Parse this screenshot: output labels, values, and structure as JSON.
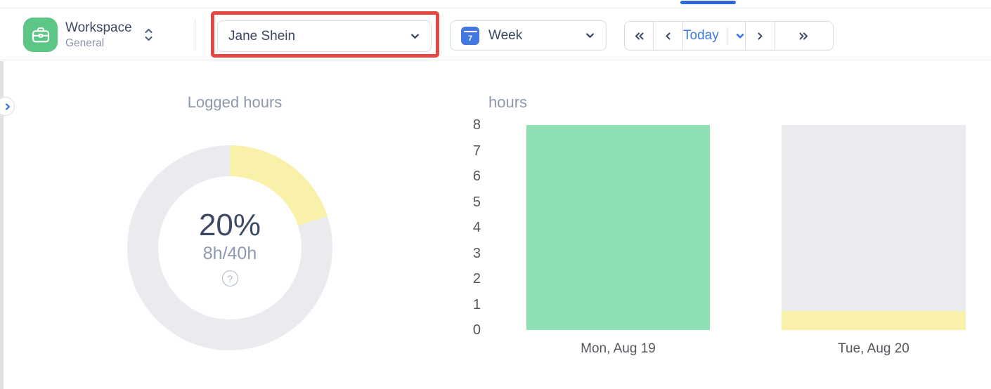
{
  "colors": {
    "accent_blue": "#3b79e3",
    "tab_indicator_blue": "#3168d8",
    "workspace_green": "#5bc685",
    "annotation_red": "#e54742",
    "calendar_icon_blue": "#4478e1",
    "bar_green": "#8ce0b2",
    "bar_yellow": "#faf1ab",
    "bar_gray": "#e9ebee"
  },
  "header": {
    "workspace": {
      "title": "Workspace",
      "subtitle": "General"
    },
    "member_dropdown": {
      "value": "Jane Shein"
    },
    "period_dropdown": {
      "value": "Week",
      "calendar_icon_day": "7"
    },
    "date_nav": {
      "today_label": "Today"
    }
  },
  "icons": {
    "help_glyph": "?"
  },
  "chart_data": [
    {
      "type": "pie",
      "variant": "donut",
      "title": "Logged hours",
      "center_label": "20%",
      "center_sublabel": "8h/40h",
      "logged_hours": 8,
      "capacity_hours": 40,
      "percent_logged": 20,
      "start_angle_deg": 0,
      "direction": "clockwise",
      "segments": [
        {
          "name": "logged",
          "value": 20,
          "color": "#f9f0a9"
        },
        {
          "name": "remaining",
          "value": 80,
          "color": "#e9ebee"
        }
      ]
    },
    {
      "type": "bar",
      "title": "hours",
      "stacked": true,
      "ylim": [
        0,
        8
      ],
      "yticks_top_to_bottom": [
        8,
        7,
        6,
        5,
        4,
        3,
        2,
        1,
        0
      ],
      "bars": [
        {
          "category": "Mon, Aug 19",
          "segments_bottom_to_top": [
            {
              "name": "logged",
              "hours": 8,
              "color": "#8ce0b2"
            }
          ]
        },
        {
          "category": "Tue, Aug 20",
          "segments_bottom_to_top": [
            {
              "name": "logged",
              "hours": 0.75,
              "color": "#faf1ab"
            },
            {
              "name": "remaining-capacity",
              "hours": 7.25,
              "color": "#e9ebee"
            }
          ]
        }
      ]
    }
  ]
}
